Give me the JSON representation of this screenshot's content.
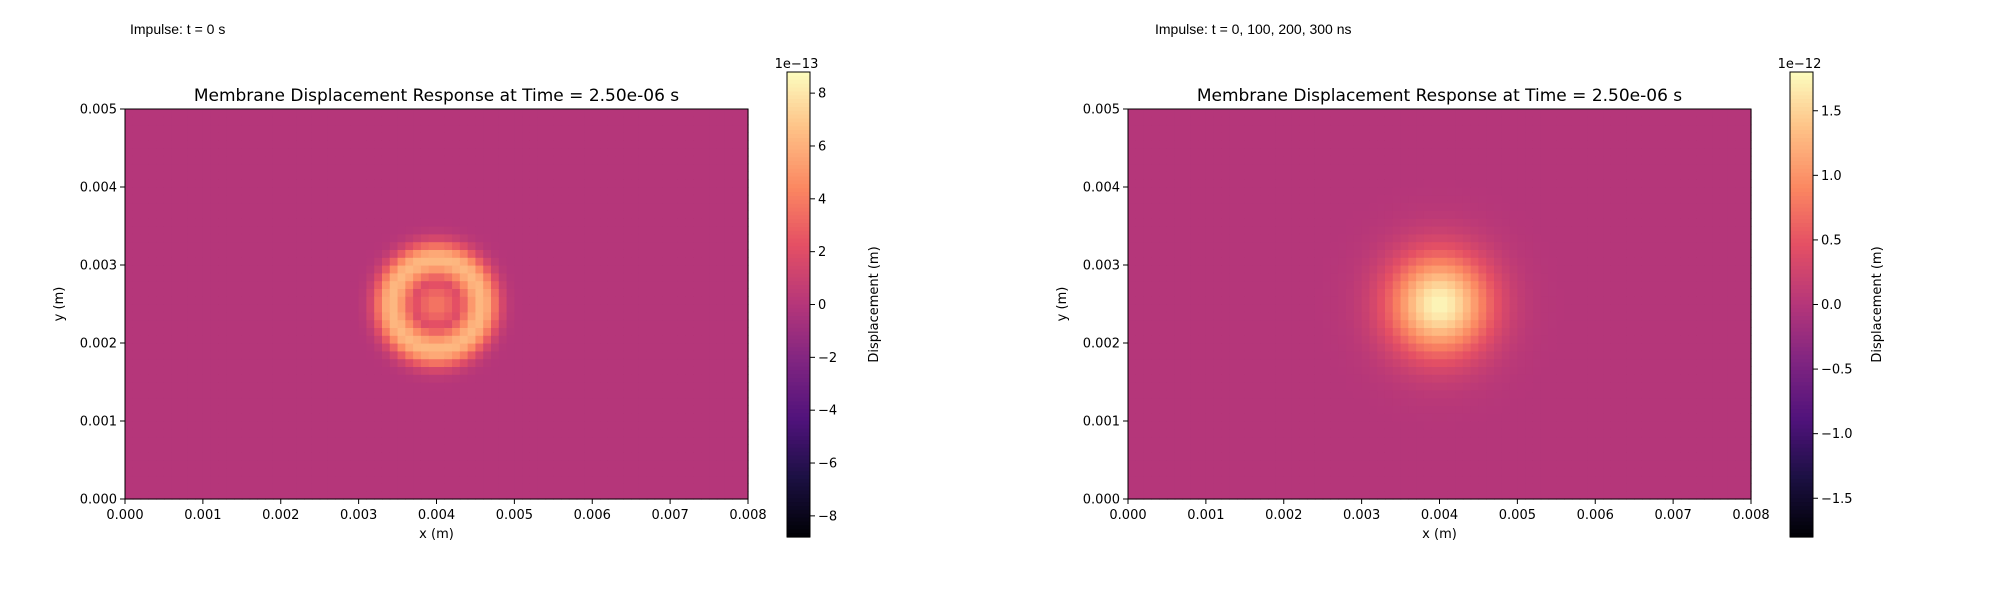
{
  "captions": {
    "left": "Impulse: t = 0 s",
    "right": "Impulse: t = 0, 100, 200, 300 ns"
  },
  "chart_data": [
    {
      "type": "heatmap",
      "title": "Membrane Displacement Response at Time = 2.50e-06 s",
      "xlabel": "x (m)",
      "ylabel": "y (m)",
      "xlim": [
        0,
        0.008
      ],
      "ylim": [
        0,
        0.005
      ],
      "x_ticks": [
        "0.000",
        "0.001",
        "0.002",
        "0.003",
        "0.004",
        "0.005",
        "0.006",
        "0.007",
        "0.008"
      ],
      "y_ticks": [
        "0.000",
        "0.001",
        "0.002",
        "0.003",
        "0.004",
        "0.005"
      ],
      "colormap": "magma",
      "colorbar": {
        "label": "Displacement (m)",
        "exponent": "1e−13",
        "range": [
          -8.8,
          8.8
        ],
        "ticks": [
          {
            "value": 8,
            "label": "8"
          },
          {
            "value": 6,
            "label": "6"
          },
          {
            "value": 4,
            "label": "4"
          },
          {
            "value": 2,
            "label": "2"
          },
          {
            "value": 0,
            "label": "0"
          },
          {
            "value": -2,
            "label": "−2"
          },
          {
            "value": -4,
            "label": "−4"
          },
          {
            "value": -6,
            "label": "−6"
          },
          {
            "value": -8,
            "label": "−8"
          }
        ]
      },
      "field": {
        "shape": "ring",
        "center": [
          0.004,
          0.0025
        ],
        "background": 0,
        "peak": 6.8,
        "center_value": 3.8,
        "ring_radius": 0.0006,
        "extent_radius": 0.001
      }
    },
    {
      "type": "heatmap",
      "title": "Membrane Displacement Response at Time = 2.50e-06 s",
      "xlabel": "x (m)",
      "ylabel": "y (m)",
      "xlim": [
        0,
        0.008
      ],
      "ylim": [
        0,
        0.005
      ],
      "x_ticks": [
        "0.000",
        "0.001",
        "0.002",
        "0.003",
        "0.004",
        "0.005",
        "0.006",
        "0.007",
        "0.008"
      ],
      "y_ticks": [
        "0.000",
        "0.001",
        "0.002",
        "0.003",
        "0.004",
        "0.005"
      ],
      "colormap": "magma",
      "colorbar": {
        "label": "Displacement (m)",
        "exponent": "1e−12",
        "range": [
          -1.8,
          1.8
        ],
        "ticks": [
          {
            "value": 1.5,
            "label": "1.5"
          },
          {
            "value": 1.0,
            "label": "1.0"
          },
          {
            "value": 0.5,
            "label": "0.5"
          },
          {
            "value": 0.0,
            "label": "0.0"
          },
          {
            "value": -0.5,
            "label": "−0.5"
          },
          {
            "value": -1.0,
            "label": "−1.0"
          },
          {
            "value": -1.5,
            "label": "−1.5"
          }
        ]
      },
      "field": {
        "shape": "peak",
        "center": [
          0.004,
          0.0025
        ],
        "background": 0,
        "peak": 1.75,
        "extent_radius": 0.001
      }
    }
  ]
}
